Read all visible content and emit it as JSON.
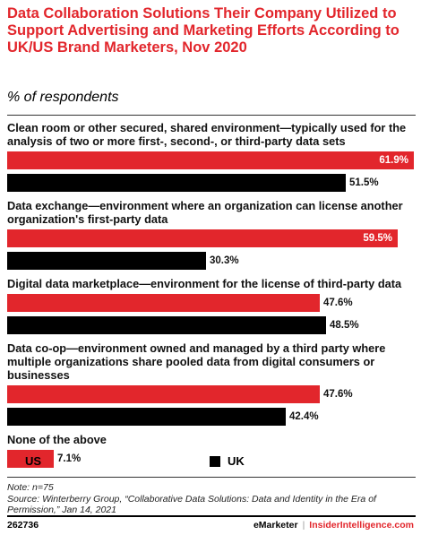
{
  "title": "Data Collaboration Solutions Their Company Utilized to Support Advertising and Marketing Efforts According to UK/US Brand Marketers, Nov 2020",
  "subtitle": "% of respondents",
  "colors": {
    "accent": "#e2262c",
    "us": "#e2262c",
    "uk": "#000000"
  },
  "chart_data": {
    "type": "bar",
    "orientation": "horizontal",
    "categories": [
      "Clean room or other secured, shared environment—typically used for the analysis of two or more first-, second-, or third-party data sets",
      "Data exchange—environment where an organization can license another organization's first-party data",
      "Digital data marketplace—environment for the license of third-party data",
      "Data co-op—environment owned and managed by a third party where multiple organizations share pooled data from digital consumers or businesses",
      "None of the above"
    ],
    "series": [
      {
        "name": "US",
        "values": [
          61.9,
          59.5,
          47.6,
          47.6,
          7.1
        ],
        "labels": [
          "61.9%",
          "59.5%",
          "47.6%",
          "47.6%",
          "7.1%"
        ]
      },
      {
        "name": "UK",
        "values": [
          51.5,
          30.3,
          48.5,
          42.4,
          null
        ],
        "labels": [
          "51.5%",
          "30.3%",
          "48.5%",
          "42.4%",
          null
        ]
      }
    ],
    "xlim": [
      0,
      61.9
    ],
    "legend_position": "bottom"
  },
  "note": "Note: n=75",
  "source": "Source: Winterberry Group, “Collaborative Data Solutions: Data and Identity in the Era of Permission,” Jan 14, 2021",
  "footer": {
    "id": "262736",
    "brand_left": "eMarketer",
    "separator": "|",
    "brand_right": "InsiderIntelligence.com"
  }
}
